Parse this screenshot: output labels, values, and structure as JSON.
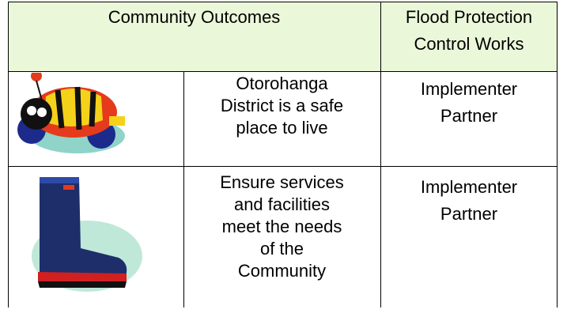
{
  "header": {
    "outcomes": "Community Outcomes",
    "works": [
      "Flood Protection",
      "Control Works"
    ]
  },
  "rows": [
    {
      "outcome": [
        "Otorohanga",
        "District is a safe",
        "place to live"
      ],
      "roles": [
        "Implementer",
        "Partner"
      ]
    },
    {
      "outcome": [
        "Ensure services",
        "and facilities",
        "meet the needs",
        "of the",
        "Community"
      ],
      "roles": [
        "Implementer",
        "Partner"
      ]
    }
  ]
}
